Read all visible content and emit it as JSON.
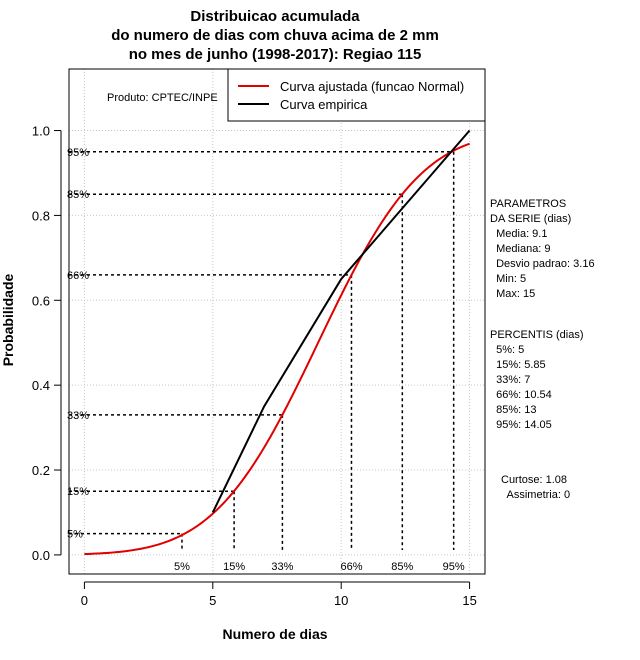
{
  "chart_data": {
    "type": "line",
    "title_lines": [
      "Distribuicao acumulada",
      "do numero de dias com chuva acima de 2 mm",
      "no mes de junho (1998-2017): Regiao 115"
    ],
    "xlabel": "Numero de dias",
    "ylabel": "Probabilidade",
    "xlim": [
      -0.6,
      15.6
    ],
    "ylim": [
      -0.045,
      1.145
    ],
    "x_ticks": [
      0,
      5,
      10,
      15
    ],
    "y_ticks": [
      0.0,
      0.2,
      0.4,
      0.6,
      0.8,
      1.0
    ],
    "x_tick_labels": [
      "0",
      "5",
      "10",
      "15"
    ],
    "y_tick_labels": [
      "0.0",
      "0.2",
      "0.4",
      "0.6",
      "0.8",
      "1.0"
    ],
    "grid": true,
    "legend_placement": "top-right",
    "series": [
      {
        "name": "Curva ajustada (funcao Normal)",
        "color": "#e00000",
        "kind": "normal-cdf",
        "mean": 9.1,
        "sd": 3.16,
        "x_range": [
          0,
          15
        ]
      },
      {
        "name": "Curva empirica",
        "color": "#000000",
        "kind": "empirical",
        "x": [
          5,
          7,
          10,
          15
        ],
        "y": [
          0.1,
          0.35,
          0.65,
          1.0
        ]
      }
    ],
    "percentiles": [
      {
        "label": "5%",
        "p": 0.05,
        "x": 3.8
      },
      {
        "label": "15%",
        "p": 0.15,
        "x": 5.83
      },
      {
        "label": "33%",
        "p": 0.33,
        "x": 7.71
      },
      {
        "label": "66%",
        "p": 0.66,
        "x": 10.4
      },
      {
        "label": "85%",
        "p": 0.85,
        "x": 12.38
      },
      {
        "label": "95%",
        "p": 0.95,
        "x": 14.38
      }
    ]
  },
  "product_label": "Produto: CPTEC/INPE",
  "side_panel": {
    "params_lines": [
      "PARAMETROS",
      "DA SERIE (dias)",
      "  Media: 9.1",
      "  Mediana: 9",
      "  Desvio padrao: 3.16",
      "  Min: 5",
      "  Max: 15"
    ],
    "percentis_lines": [
      "PERCENTIS (dias)",
      "  5%: 5",
      "  15%: 5.85",
      "  33%: 7",
      "  66%: 10.54",
      "  85%: 13",
      "  95%: 14.05"
    ],
    "shape_lines": [
      "Curtose: 1.08",
      "  Assimetria: 0"
    ]
  }
}
